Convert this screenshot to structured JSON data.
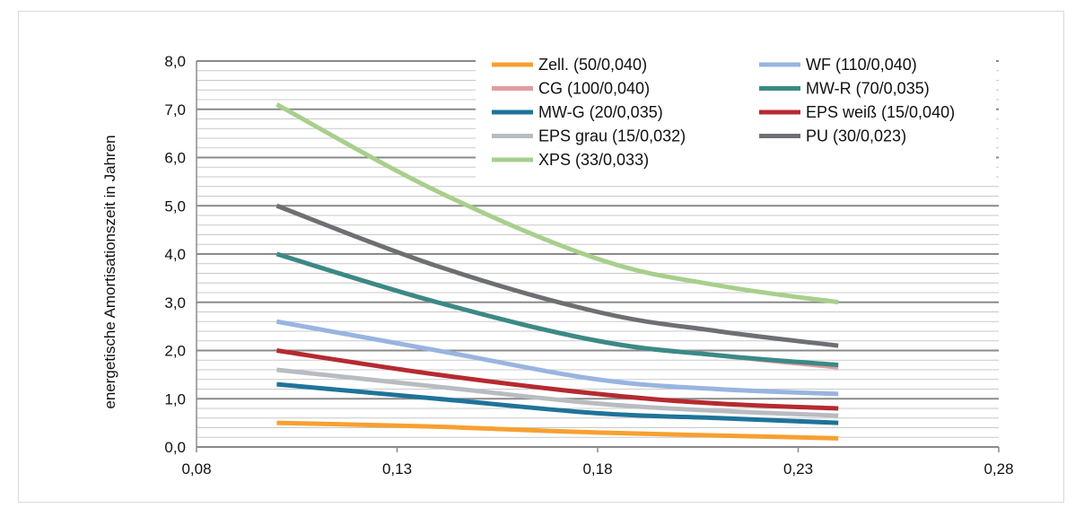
{
  "chart_data": {
    "type": "line",
    "title": "",
    "xlabel": "",
    "ylabel": "energetische Amortisationszeit in Jahren",
    "xlim": [
      0.08,
      0.28
    ],
    "ylim": [
      0,
      8
    ],
    "x_ticks": [
      "0,08",
      "0,13",
      "0,18",
      "0,23",
      "0,28"
    ],
    "x_tick_values": [
      0.08,
      0.13,
      0.18,
      0.23,
      0.28
    ],
    "y_ticks": [
      "0,0",
      "1,0",
      "2,0",
      "3,0",
      "4,0",
      "5,0",
      "6,0",
      "7,0",
      "8,0"
    ],
    "y_tick_values": [
      0,
      1,
      2,
      3,
      4,
      5,
      6,
      7,
      8
    ],
    "grid": "horizontal",
    "legend_position": "top-right",
    "series": [
      {
        "name": "Zell. (50/0,040)",
        "color": "#f7a030",
        "x": [
          0.1,
          0.14,
          0.18,
          0.24
        ],
        "values": [
          0.5,
          0.42,
          0.3,
          0.18
        ]
      },
      {
        "name": "WF (110/0,040)",
        "color": "#98b4e0",
        "x": [
          0.1,
          0.14,
          0.18,
          0.21,
          0.24
        ],
        "values": [
          2.6,
          2.0,
          1.4,
          1.2,
          1.1
        ]
      },
      {
        "name": "CG (100/0,040)",
        "color": "#e29ca0",
        "x": [
          0.1,
          0.14,
          0.18,
          0.21,
          0.24
        ],
        "values": [
          4.0,
          3.0,
          2.2,
          1.9,
          1.65
        ]
      },
      {
        "name": "MW-R (70/0,035)",
        "color": "#3a8a86",
        "x": [
          0.1,
          0.14,
          0.18,
          0.21,
          0.24
        ],
        "values": [
          4.0,
          3.0,
          2.2,
          1.9,
          1.7
        ]
      },
      {
        "name": "MW-G (20/0,035)",
        "color": "#1f7399",
        "x": [
          0.1,
          0.14,
          0.18,
          0.21,
          0.24
        ],
        "values": [
          1.3,
          1.0,
          0.7,
          0.6,
          0.5
        ]
      },
      {
        "name": "EPS weiß (15/0,040)",
        "color": "#b52a30",
        "x": [
          0.1,
          0.14,
          0.18,
          0.21,
          0.24
        ],
        "values": [
          2.0,
          1.5,
          1.1,
          0.9,
          0.8
        ]
      },
      {
        "name": "EPS grau (15/0,032)",
        "color": "#b8bcc0",
        "x": [
          0.1,
          0.14,
          0.18,
          0.21,
          0.24
        ],
        "values": [
          1.6,
          1.25,
          0.9,
          0.75,
          0.65
        ]
      },
      {
        "name": "PU (30/0,023)",
        "color": "#6e6f73",
        "x": [
          0.1,
          0.14,
          0.18,
          0.21,
          0.24
        ],
        "values": [
          5.0,
          3.75,
          2.8,
          2.4,
          2.1
        ]
      },
      {
        "name": "XPS (33/0,033)",
        "color": "#a8cf8c",
        "x": [
          0.1,
          0.14,
          0.18,
          0.21,
          0.24
        ],
        "values": [
          7.1,
          5.3,
          3.9,
          3.35,
          3.0
        ]
      }
    ]
  }
}
